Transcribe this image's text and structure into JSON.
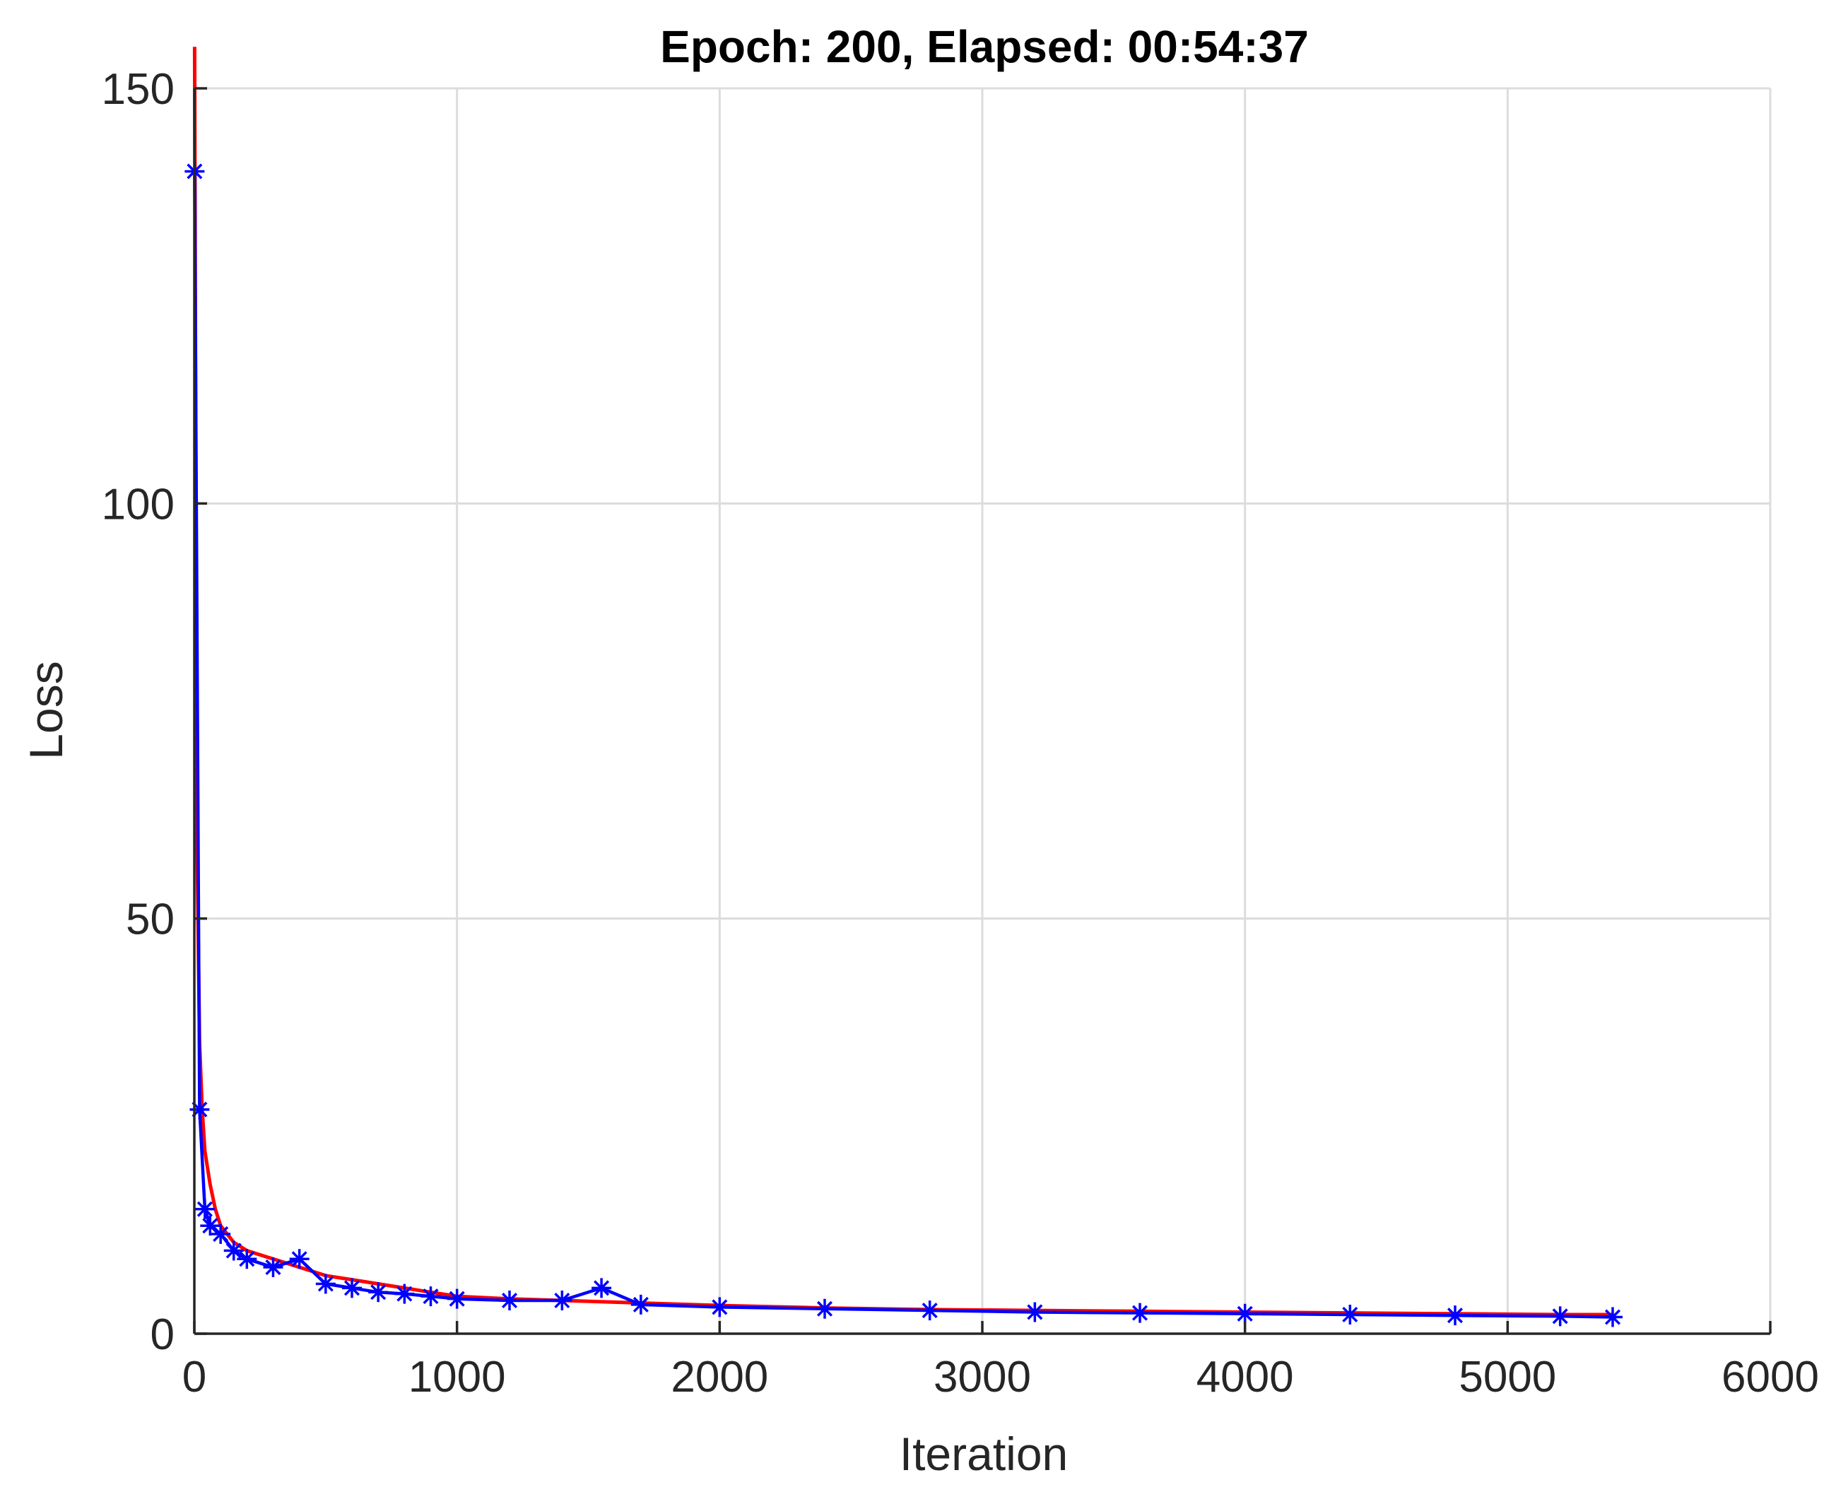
{
  "chart_data": {
    "type": "line",
    "title": "Epoch: 200, Elapsed: 00:54:37",
    "xlabel": "Iteration",
    "ylabel": "Loss",
    "xlim": [
      0,
      6000
    ],
    "ylim": [
      0,
      150
    ],
    "xticks": [
      0,
      1000,
      2000,
      3000,
      4000,
      5000,
      6000
    ],
    "yticks": [
      0,
      50,
      100,
      150
    ],
    "xtick_labels": [
      "0",
      "1000",
      "2000",
      "3000",
      "4000",
      "5000",
      "6000"
    ],
    "ytick_labels": [
      "0",
      "50",
      "100",
      "150"
    ],
    "grid": true,
    "series": [
      {
        "color": "#ff0000",
        "style": "line",
        "x": [
          1,
          5,
          10,
          20,
          30,
          40,
          60,
          80,
          100,
          150,
          200,
          300,
          400,
          500,
          600,
          700,
          800,
          900,
          1000,
          1200,
          1400,
          1600,
          1800,
          2000,
          2400,
          2800,
          3200,
          3600,
          4000,
          4400,
          4800,
          5200,
          5400
        ],
        "y": [
          155,
          110,
          60,
          35,
          27,
          22,
          18,
          15,
          13,
          11,
          10,
          9,
          8,
          7,
          6.5,
          6,
          5.5,
          5,
          4.5,
          4.2,
          4,
          3.8,
          3.6,
          3.4,
          3.1,
          2.9,
          2.8,
          2.7,
          2.6,
          2.5,
          2.4,
          2.3,
          2.3
        ]
      },
      {
        "color": "#0000ff",
        "style": "line-star",
        "x": [
          1,
          20,
          40,
          60,
          100,
          150,
          200,
          300,
          400,
          500,
          600,
          700,
          800,
          900,
          1000,
          1200,
          1400,
          1550,
          1700,
          2000,
          2400,
          2800,
          3200,
          3600,
          4000,
          4400,
          4800,
          5200,
          5400
        ],
        "y": [
          140,
          27,
          15,
          13,
          12,
          10,
          9,
          8,
          9,
          6,
          5.5,
          5,
          4.8,
          4.5,
          4.2,
          4,
          4,
          5.5,
          3.5,
          3.2,
          3,
          2.8,
          2.6,
          2.5,
          2.4,
          2.3,
          2.2,
          2.1,
          2
        ]
      }
    ]
  }
}
